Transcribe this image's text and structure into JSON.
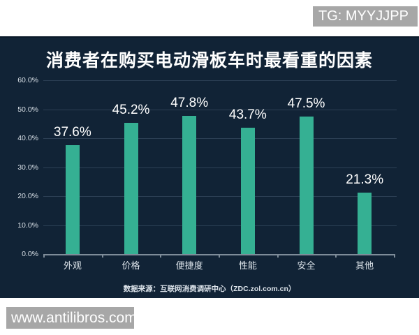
{
  "watermarks": {
    "telegram": "TG: MYYJJPP",
    "site": "www.antilibros.com"
  },
  "chart_data": {
    "type": "bar",
    "title": "消费者在购买电动滑板车时最看重的因素",
    "source": "数据来源：互联网消费调研中心（ZDC.zol.com.cn）",
    "categories": [
      "外观",
      "价格",
      "便捷度",
      "性能",
      "安全",
      "其他"
    ],
    "values": [
      37.6,
      45.2,
      47.8,
      43.7,
      47.5,
      21.3
    ],
    "value_labels": [
      "37.6%",
      "45.2%",
      "47.8%",
      "43.7%",
      "47.5%",
      "21.3%"
    ],
    "xlabel": "",
    "ylabel": "",
    "ylim": [
      0,
      60
    ],
    "y_ticks": [
      0,
      10,
      20,
      30,
      40,
      50,
      60
    ],
    "y_tick_labels": [
      "0.0%",
      "10.0%",
      "20.0%",
      "30.0%",
      "40.0%",
      "50.0%",
      "60.0%"
    ],
    "grid": true,
    "legend": false,
    "bar_color": "#35b093",
    "background_color": "#112336"
  }
}
